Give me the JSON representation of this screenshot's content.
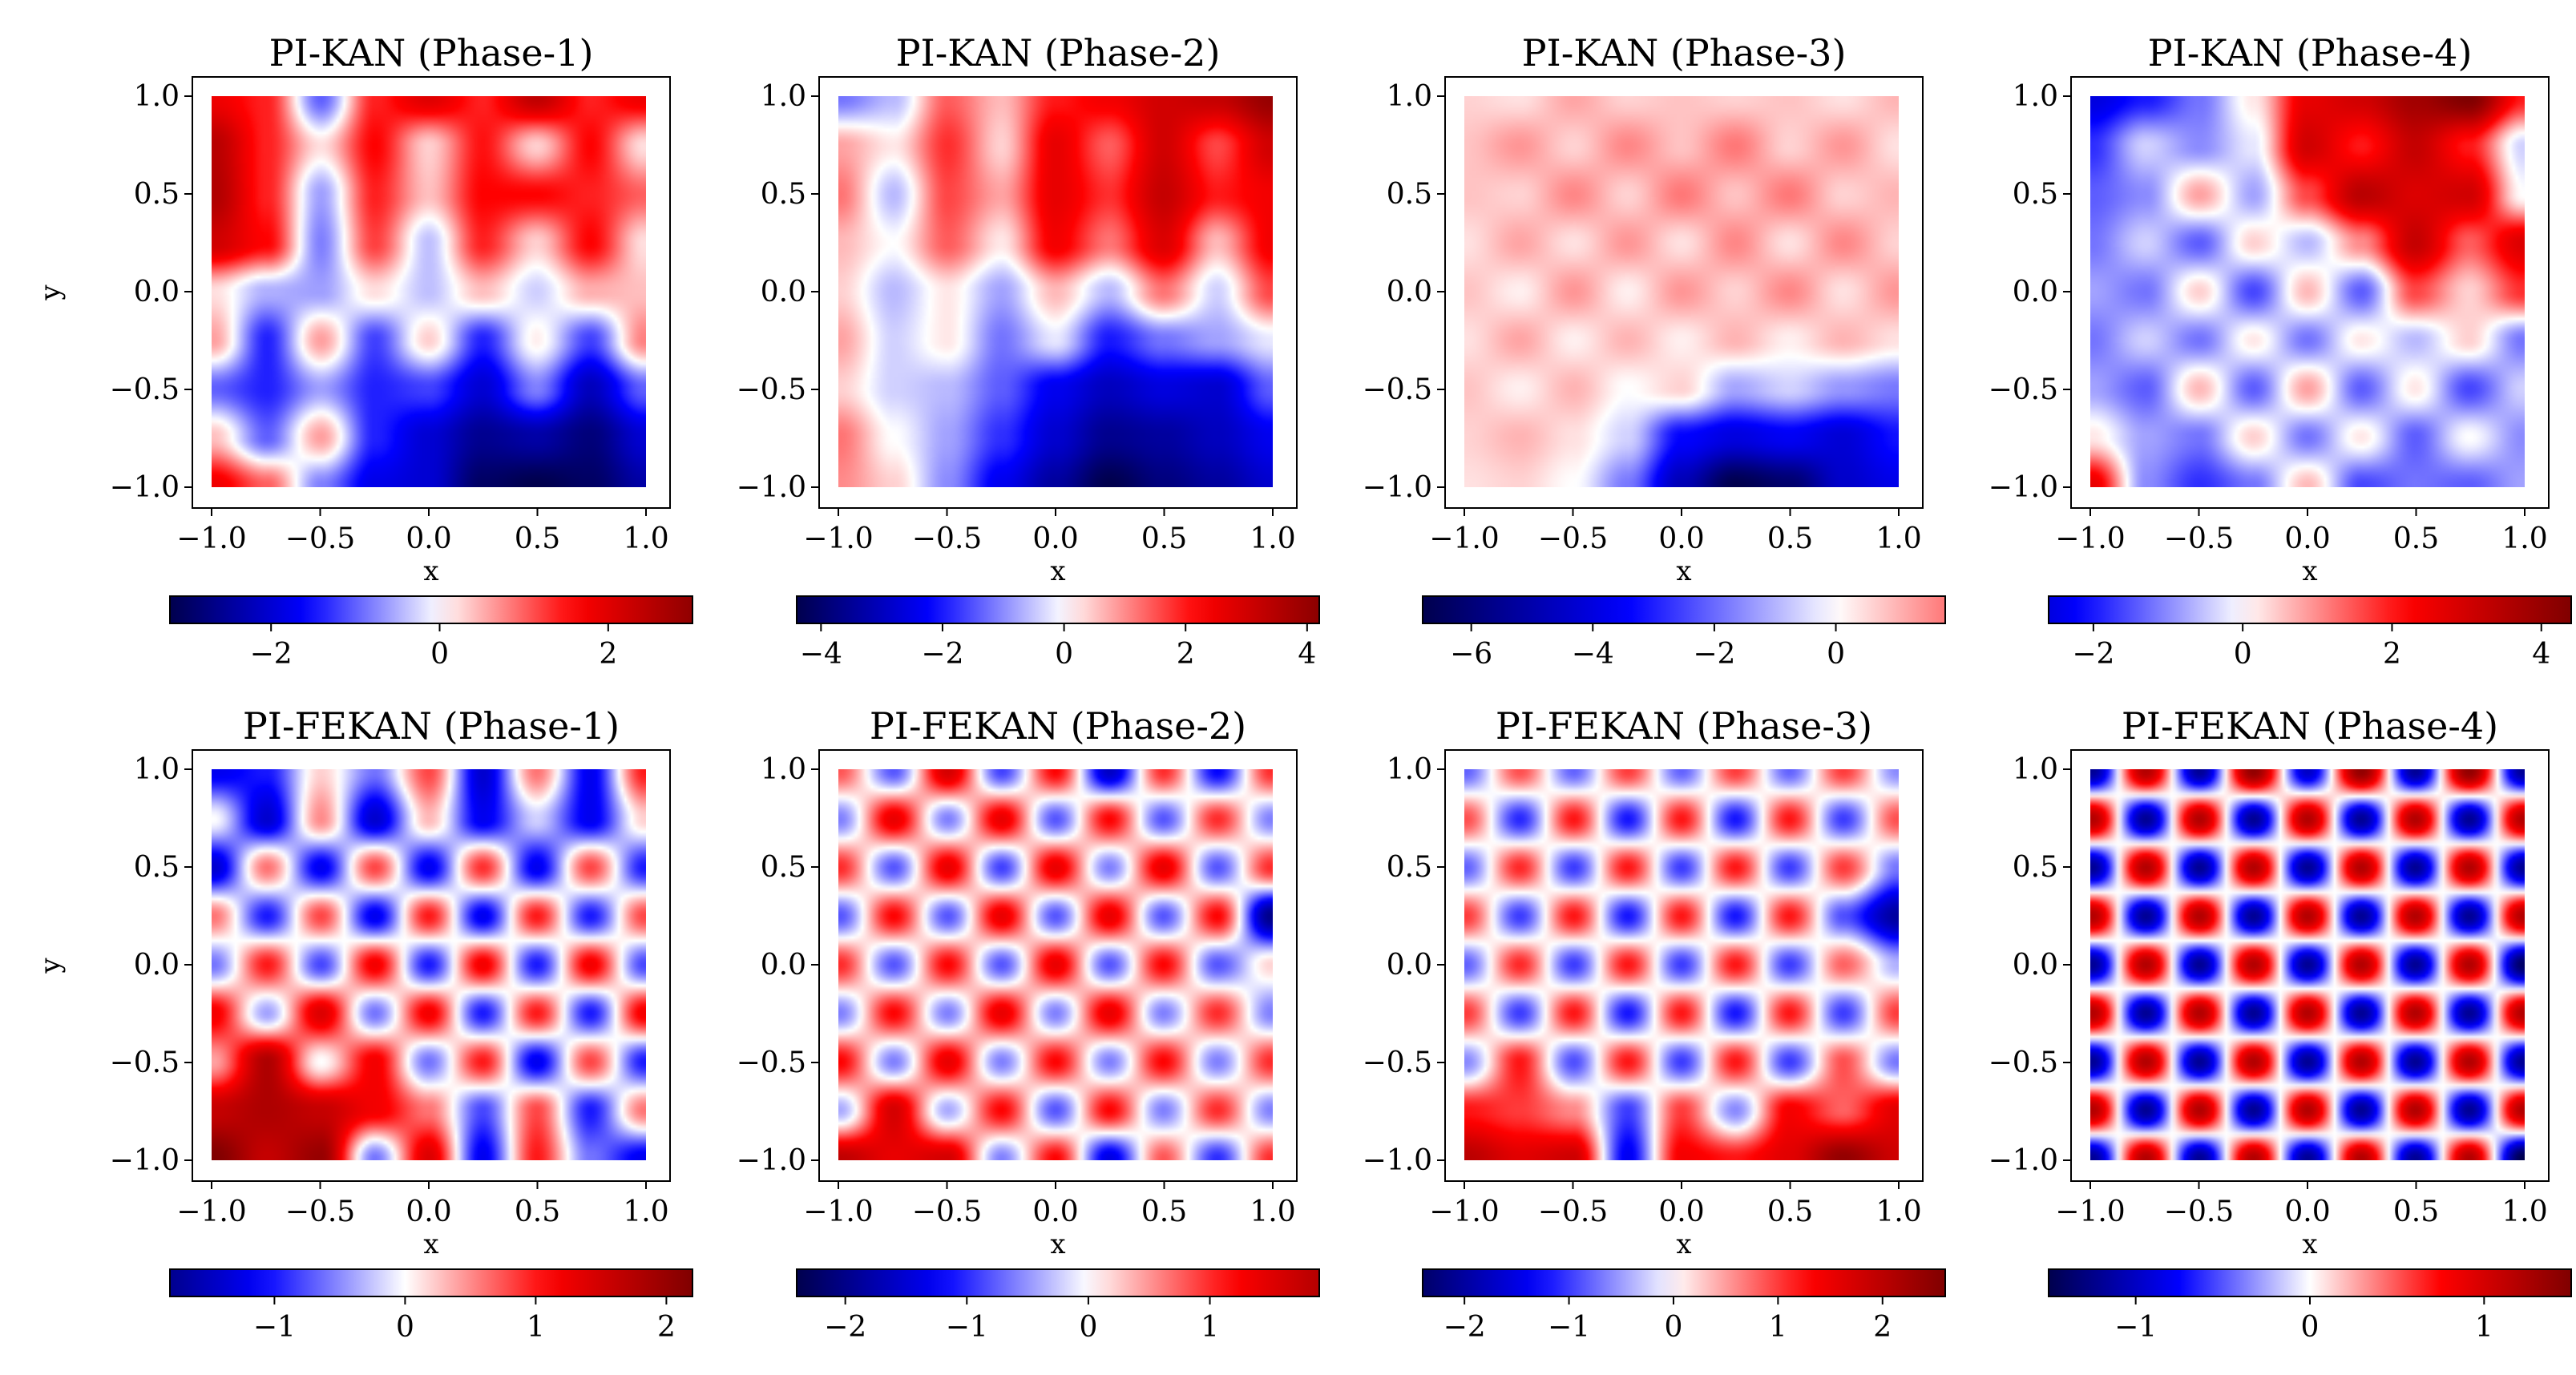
{
  "figure": {
    "rows": [
      "PI-KAN",
      "PI-FEKAN"
    ]
  },
  "chart_data": [
    {
      "type": "heatmap",
      "title": "PI-KAN (Phase-1)",
      "xlabel": "x",
      "ylabel": "y",
      "xlim": [
        -1,
        1
      ],
      "ylim": [
        -1,
        1
      ],
      "xticks": [
        "−1.0",
        "−0.5",
        "0.0",
        "0.5",
        "1.0"
      ],
      "yticks": [
        "1.0",
        "0.5",
        "0.0",
        "−0.5",
        "−1.0"
      ],
      "colorbar": {
        "range": [
          -3.2,
          3.0
        ],
        "ticks": [
          -2,
          0,
          2
        ],
        "labels": [
          "−2",
          "0",
          "2"
        ]
      },
      "grid_x": [
        -1,
        -0.75,
        -0.5,
        -0.25,
        0,
        0.25,
        0.5,
        0.75,
        1
      ],
      "grid_y": [
        1,
        0.75,
        0.5,
        0.25,
        0,
        -0.25,
        -0.5,
        -0.75,
        -1
      ],
      "values": [
        [
          1.8,
          1.4,
          -1.0,
          1.4,
          2.0,
          1.4,
          2.4,
          1.4,
          1.8
        ],
        [
          2.5,
          1.4,
          0.2,
          1.6,
          0.3,
          1.5,
          0.3,
          1.6,
          0.2
        ],
        [
          2.6,
          1.4,
          -0.6,
          1.4,
          0.4,
          1.6,
          1.6,
          1.4,
          1.0
        ],
        [
          2.2,
          1.6,
          -0.8,
          1.2,
          -0.4,
          1.4,
          0.3,
          1.6,
          0.2
        ],
        [
          0.2,
          -0.5,
          -0.6,
          0.2,
          -0.4,
          0.4,
          -0.3,
          0.5,
          0.4
        ],
        [
          0.6,
          -1.4,
          0.6,
          -1.2,
          0.3,
          -1.4,
          0.1,
          -1.2,
          0.8
        ],
        [
          -1.0,
          -1.4,
          -0.6,
          -1.4,
          -1.2,
          -2.0,
          -0.8,
          -2.2,
          -1.0
        ],
        [
          0.4,
          -1.0,
          0.6,
          -1.4,
          -2.0,
          -2.6,
          -2.4,
          -2.8,
          -2.0
        ],
        [
          1.8,
          1.0,
          -0.8,
          -1.8,
          -2.0,
          -3.0,
          -3.2,
          -3.0,
          -2.4
        ]
      ]
    },
    {
      "type": "heatmap",
      "title": "PI-KAN (Phase-2)",
      "xlabel": "x",
      "ylabel": "",
      "xlim": [
        -1,
        1
      ],
      "ylim": [
        -1,
        1
      ],
      "xticks": [
        "−1.0",
        "−0.5",
        "0.0",
        "0.5",
        "1.0"
      ],
      "yticks": [
        "1.0",
        "0.5",
        "0.0",
        "−0.5",
        "−1.0"
      ],
      "colorbar": {
        "range": [
          -4.4,
          4.2
        ],
        "ticks": [
          -4,
          -2,
          0,
          2,
          4
        ],
        "labels": [
          "−4",
          "−2",
          "0",
          "2",
          "4"
        ]
      },
      "grid_x": [
        -1,
        -0.75,
        -0.5,
        -0.25,
        0,
        0.25,
        0.5,
        0.75,
        1
      ],
      "grid_y": [
        1,
        0.75,
        0.5,
        0.25,
        0,
        -0.25,
        -0.5,
        -0.75,
        -1
      ],
      "values": [
        [
          -1.2,
          -0.6,
          1.4,
          0.6,
          2.0,
          2.4,
          3.0,
          3.2,
          4.0
        ],
        [
          0.8,
          0.2,
          1.8,
          0.4,
          2.6,
          1.4,
          3.0,
          1.6,
          3.0
        ],
        [
          1.2,
          -0.6,
          1.6,
          0.8,
          2.6,
          1.8,
          3.2,
          2.0,
          2.4
        ],
        [
          0.6,
          0.0,
          1.4,
          0.2,
          2.4,
          1.2,
          2.8,
          0.6,
          2.4
        ],
        [
          0.4,
          -0.6,
          0.2,
          -0.8,
          0.6,
          -0.6,
          1.2,
          -0.4,
          1.6
        ],
        [
          0.8,
          -0.4,
          0.2,
          -1.2,
          -0.2,
          -2.0,
          -1.2,
          -0.8,
          -0.2
        ],
        [
          0.4,
          -0.4,
          -0.6,
          -1.4,
          -2.4,
          -3.0,
          -2.6,
          -2.8,
          -1.4
        ],
        [
          1.2,
          0.0,
          -0.8,
          -1.8,
          -2.8,
          -3.6,
          -3.4,
          -3.0,
          -2.4
        ],
        [
          1.0,
          0.4,
          -1.0,
          -2.4,
          -3.4,
          -4.4,
          -3.8,
          -3.4,
          -2.8
        ]
      ]
    },
    {
      "type": "heatmap",
      "title": "PI-KAN (Phase-3)",
      "xlabel": "x",
      "ylabel": "",
      "xlim": [
        -1,
        1
      ],
      "ylim": [
        -1,
        1
      ],
      "xticks": [
        "−1.0",
        "−0.5",
        "0.0",
        "0.5",
        "1.0"
      ],
      "yticks": [
        "1.0",
        "0.5",
        "0.0",
        "−0.5",
        "−1.0"
      ],
      "colorbar": {
        "range": [
          -6.8,
          1.8
        ],
        "ticks": [
          -6,
          -4,
          -2,
          0
        ],
        "labels": [
          "−6",
          "−4",
          "−2",
          "0"
        ]
      },
      "grid_x": [
        -1,
        -0.75,
        -0.5,
        -0.25,
        0,
        0.25,
        0.5,
        0.75,
        1
      ],
      "grid_y": [
        1,
        0.75,
        0.5,
        0.25,
        0,
        -0.25,
        -0.5,
        -0.75,
        -1
      ],
      "values": [
        [
          0.6,
          0.4,
          1.2,
          0.6,
          0.8,
          0.6,
          0.8,
          0.4,
          1.0
        ],
        [
          0.8,
          1.4,
          0.6,
          1.6,
          0.8,
          1.8,
          0.6,
          1.4,
          0.4
        ],
        [
          0.8,
          0.6,
          1.6,
          0.6,
          1.8,
          0.8,
          1.8,
          0.6,
          1.0
        ],
        [
          0.4,
          1.2,
          0.4,
          1.4,
          0.4,
          1.6,
          0.4,
          1.6,
          0.6
        ],
        [
          0.8,
          0.2,
          1.4,
          0.2,
          1.4,
          0.6,
          1.6,
          0.4,
          1.4
        ],
        [
          0.4,
          1.2,
          0.2,
          1.0,
          0.2,
          1.0,
          0.2,
          1.0,
          0.4
        ],
        [
          0.8,
          0.2,
          1.0,
          0.0,
          0.6,
          -1.2,
          -0.6,
          -1.4,
          -1.8
        ],
        [
          0.6,
          1.0,
          0.4,
          -0.6,
          -3.4,
          -4.0,
          -3.6,
          -4.2,
          -3.2
        ],
        [
          0.4,
          0.6,
          0.0,
          -1.8,
          -4.8,
          -6.8,
          -6.2,
          -4.4,
          -3.8
        ]
      ]
    },
    {
      "type": "heatmap",
      "title": "PI-KAN (Phase-4)",
      "xlabel": "x",
      "ylabel": "",
      "xlim": [
        -1,
        1
      ],
      "ylim": [
        -1,
        1
      ],
      "xticks": [
        "−1.0",
        "−0.5",
        "0.0",
        "0.5",
        "1.0"
      ],
      "yticks": [
        "1.0",
        "0.5",
        "0.0",
        "−0.5",
        "−1.0"
      ],
      "colorbar": {
        "range": [
          -2.6,
          4.4
        ],
        "ticks": [
          -2,
          0,
          2,
          4
        ],
        "labels": [
          "−2",
          "0",
          "2",
          "4"
        ]
      },
      "grid_x": [
        -1,
        -0.75,
        -0.5,
        -0.25,
        0,
        0.25,
        0.5,
        0.75,
        1
      ],
      "grid_y": [
        1,
        0.75,
        0.5,
        0.25,
        0,
        -0.25,
        -0.5,
        -0.75,
        -1
      ],
      "values": [
        [
          -2.6,
          -2.0,
          -1.2,
          0.2,
          2.6,
          3.0,
          3.8,
          4.4,
          2.0
        ],
        [
          -1.8,
          -0.4,
          -1.0,
          -0.2,
          3.0,
          2.0,
          3.2,
          2.0,
          -0.4
        ],
        [
          -1.4,
          -1.0,
          0.8,
          -0.8,
          1.6,
          3.4,
          2.8,
          3.0,
          0.0
        ],
        [
          -1.2,
          -0.4,
          -1.4,
          0.4,
          -0.6,
          1.0,
          3.2,
          1.4,
          2.8
        ],
        [
          -0.8,
          -1.2,
          0.4,
          -1.6,
          0.6,
          -1.4,
          1.6,
          0.4,
          1.8
        ],
        [
          -1.2,
          -0.4,
          -1.2,
          0.2,
          -1.2,
          0.2,
          -0.6,
          0.4,
          -1.2
        ],
        [
          -0.8,
          -1.4,
          0.6,
          -1.4,
          0.8,
          -1.4,
          0.2,
          -1.6,
          -0.4
        ],
        [
          0.2,
          -0.8,
          -1.2,
          0.4,
          -1.2,
          0.2,
          -1.4,
          0.0,
          -1.0
        ],
        [
          2.6,
          -1.0,
          -1.8,
          -1.2,
          0.6,
          -1.6,
          -1.2,
          -1.4,
          -0.8
        ]
      ]
    },
    {
      "type": "heatmap",
      "title": "PI-FEKAN (Phase-1)",
      "xlabel": "x",
      "ylabel": "y",
      "xlim": [
        -1,
        1
      ],
      "ylim": [
        -1,
        1
      ],
      "xticks": [
        "−1.0",
        "−0.5",
        "0.0",
        "0.5",
        "1.0"
      ],
      "yticks": [
        "1.0",
        "0.5",
        "0.0",
        "−0.5",
        "−1.0"
      ],
      "colorbar": {
        "range": [
          -1.8,
          2.2
        ],
        "ticks": [
          -1,
          0,
          1,
          2
        ],
        "labels": [
          "−1",
          "0",
          "1",
          "2"
        ]
      },
      "grid_x": [
        -1,
        -0.75,
        -0.5,
        -0.25,
        0,
        0.25,
        0.5,
        0.75,
        1
      ],
      "grid_y": [
        1,
        0.75,
        0.5,
        0.25,
        0,
        -0.25,
        -0.5,
        -0.75,
        -1
      ],
      "values": [
        [
          -1.2,
          -1.0,
          0.2,
          -0.6,
          0.8,
          -1.4,
          0.6,
          -1.2,
          1.0
        ],
        [
          0.0,
          -1.4,
          0.5,
          -1.4,
          0.3,
          -1.2,
          -0.2,
          -1.2,
          0.2
        ],
        [
          -1.4,
          0.6,
          -1.2,
          0.8,
          -1.2,
          0.9,
          -1.2,
          0.8,
          -1.0
        ],
        [
          0.6,
          -1.0,
          0.8,
          -1.2,
          1.0,
          -1.2,
          1.0,
          -1.0,
          0.8
        ],
        [
          -0.6,
          1.0,
          -0.8,
          1.2,
          -1.0,
          1.2,
          -1.0,
          1.2,
          -0.8
        ],
        [
          1.2,
          -0.4,
          1.4,
          -0.6,
          1.2,
          -1.0,
          1.0,
          -1.0,
          1.2
        ],
        [
          0.4,
          1.8,
          0.0,
          1.2,
          -0.6,
          1.0,
          -1.2,
          0.8,
          -1.0
        ],
        [
          1.6,
          1.8,
          1.6,
          1.2,
          0.6,
          -0.8,
          0.8,
          -1.0,
          0.6
        ],
        [
          2.2,
          1.6,
          2.0,
          -0.6,
          1.4,
          -1.2,
          1.0,
          -0.6,
          -1.2
        ]
      ]
    },
    {
      "type": "heatmap",
      "title": "PI-FEKAN (Phase-2)",
      "xlabel": "x",
      "ylabel": "",
      "xlim": [
        -1,
        1
      ],
      "ylim": [
        -1,
        1
      ],
      "xticks": [
        "−1.0",
        "−0.5",
        "0.0",
        "0.5",
        "1.0"
      ],
      "yticks": [
        "1.0",
        "0.5",
        "0.0",
        "−0.5",
        "−1.0"
      ],
      "colorbar": {
        "range": [
          -2.4,
          1.9
        ],
        "ticks": [
          -2,
          -1,
          0,
          1
        ],
        "labels": [
          "−2",
          "−1",
          "0",
          "1"
        ]
      },
      "grid_x": [
        -1,
        -0.75,
        -0.5,
        -0.25,
        0,
        0.25,
        0.5,
        0.75,
        1
      ],
      "grid_y": [
        1,
        0.75,
        0.5,
        0.25,
        0,
        -0.25,
        -0.5,
        -0.75,
        -1
      ],
      "values": [
        [
          0.8,
          -0.8,
          1.6,
          -0.9,
          1.2,
          -1.6,
          1.0,
          -1.2,
          1.0
        ],
        [
          -0.6,
          1.4,
          -0.6,
          1.4,
          -0.8,
          1.2,
          -0.8,
          1.0,
          -0.6
        ],
        [
          1.0,
          -0.8,
          1.4,
          -0.9,
          1.4,
          -0.6,
          1.4,
          -0.8,
          1.0
        ],
        [
          -0.8,
          1.2,
          -0.8,
          1.4,
          -0.8,
          1.4,
          -0.8,
          1.2,
          -2.0
        ],
        [
          1.0,
          -0.8,
          1.2,
          -0.8,
          1.4,
          -0.8,
          1.2,
          -0.8,
          0.2
        ],
        [
          -0.6,
          1.2,
          -0.6,
          1.4,
          -0.6,
          1.4,
          -0.6,
          1.0,
          -0.6
        ],
        [
          1.2,
          -0.6,
          1.4,
          -0.6,
          1.2,
          -0.6,
          1.2,
          -0.6,
          1.0
        ],
        [
          -0.4,
          1.6,
          -0.4,
          1.2,
          -0.8,
          1.2,
          -0.6,
          1.0,
          -0.6
        ],
        [
          1.8,
          1.4,
          1.6,
          -0.6,
          1.2,
          -1.4,
          0.8,
          -1.0,
          1.0
        ]
      ]
    },
    {
      "type": "heatmap",
      "title": "PI-FEKAN (Phase-3)",
      "xlabel": "x",
      "ylabel": "",
      "xlim": [
        -1,
        1
      ],
      "ylim": [
        -1,
        1
      ],
      "xticks": [
        "−1.0",
        "−0.5",
        "0.0",
        "0.5",
        "1.0"
      ],
      "yticks": [
        "1.0",
        "0.5",
        "0.0",
        "−0.5",
        "−1.0"
      ],
      "colorbar": {
        "range": [
          -2.4,
          2.6
        ],
        "ticks": [
          -2,
          -1,
          0,
          1,
          2
        ],
        "labels": [
          "−2",
          "−1",
          "0",
          "1",
          "2"
        ]
      },
      "grid_x": [
        -1,
        -0.75,
        -0.5,
        -0.25,
        0,
        0.25,
        0.5,
        0.75,
        1
      ],
      "grid_y": [
        1,
        0.75,
        0.5,
        0.25,
        0,
        -0.25,
        -0.5,
        -0.75,
        -1
      ],
      "values": [
        [
          -0.8,
          0.9,
          -0.8,
          1.0,
          -0.8,
          1.0,
          -0.8,
          1.0,
          -0.6
        ],
        [
          0.9,
          -1.1,
          1.2,
          -1.2,
          1.2,
          -1.2,
          1.2,
          -1.0,
          0.9
        ],
        [
          -0.8,
          1.1,
          -1.0,
          1.2,
          -1.0,
          1.2,
          -1.0,
          1.0,
          -0.7
        ],
        [
          1.0,
          -1.0,
          1.2,
          -1.2,
          1.2,
          -1.2,
          1.2,
          -0.9,
          -2.0
        ],
        [
          -0.8,
          1.1,
          -1.0,
          1.2,
          -1.0,
          1.2,
          -1.0,
          0.8,
          -0.4
        ],
        [
          1.0,
          -1.0,
          1.2,
          -1.2,
          1.2,
          -1.2,
          1.2,
          -1.0,
          1.0
        ],
        [
          -0.6,
          1.2,
          -0.9,
          1.2,
          -1.0,
          1.2,
          -1.0,
          0.9,
          -0.7
        ],
        [
          1.2,
          1.0,
          0.6,
          -1.0,
          1.0,
          -0.6,
          1.4,
          0.8,
          1.6
        ],
        [
          2.0,
          1.6,
          1.8,
          -1.4,
          1.4,
          1.2,
          1.6,
          2.4,
          1.8
        ]
      ]
    },
    {
      "type": "heatmap",
      "title": "PI-FEKAN (Phase-4)",
      "xlabel": "x",
      "ylabel": "",
      "xlim": [
        -1,
        1
      ],
      "ylim": [
        -1,
        1
      ],
      "xticks": [
        "−1.0",
        "−0.5",
        "0.0",
        "0.5",
        "1.0"
      ],
      "yticks": [
        "1.0",
        "0.5",
        "0.0",
        "−0.5",
        "−1.0"
      ],
      "colorbar": {
        "range": [
          -1.5,
          1.5
        ],
        "ticks": [
          -1,
          0,
          1
        ],
        "labels": [
          "−1",
          "0",
          "1"
        ]
      },
      "grid_x": [
        -1,
        -0.75,
        -0.5,
        -0.25,
        0,
        0.25,
        0.5,
        0.75,
        1
      ],
      "grid_y": [
        1,
        0.75,
        0.5,
        0.25,
        0,
        -0.25,
        -0.5,
        -0.75,
        -1
      ],
      "values": [
        [
          -1.2,
          1.2,
          -1.2,
          1.4,
          -1.0,
          1.4,
          -1.2,
          1.4,
          -1.2
        ],
        [
          1.2,
          -1.2,
          1.2,
          -1.2,
          1.2,
          -1.2,
          1.2,
          -1.2,
          1.2
        ],
        [
          -1.2,
          1.2,
          -1.2,
          1.2,
          -1.2,
          1.2,
          -1.2,
          1.2,
          -1.2
        ],
        [
          1.2,
          -1.2,
          1.2,
          -1.2,
          1.2,
          -1.2,
          1.2,
          -1.2,
          1.2
        ],
        [
          -1.2,
          1.2,
          -1.2,
          1.2,
          -1.2,
          1.2,
          -1.2,
          1.2,
          -1.4
        ],
        [
          1.2,
          -1.2,
          1.2,
          -1.2,
          1.2,
          -1.2,
          1.2,
          -1.2,
          1.2
        ],
        [
          -1.2,
          1.2,
          -1.2,
          1.2,
          -1.2,
          1.2,
          -1.2,
          1.2,
          -1.2
        ],
        [
          1.2,
          -1.2,
          1.2,
          -1.2,
          1.2,
          -1.2,
          1.2,
          -1.2,
          1.2
        ],
        [
          -1.2,
          1.2,
          -1.2,
          1.2,
          -1.2,
          1.2,
          -1.2,
          1.2,
          -1.5
        ]
      ]
    }
  ]
}
